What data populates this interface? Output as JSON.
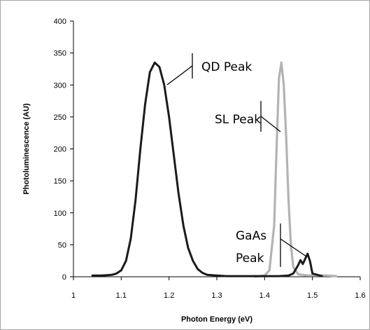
{
  "chart_data": {
    "type": "line",
    "xlabel": "Photon Energy (eV)",
    "ylabel": "Photoluminescence (AU)",
    "xlim": [
      1,
      1.6
    ],
    "ylim": [
      0,
      400
    ],
    "x_ticks": [
      "1",
      "1.1",
      "1.2",
      "1.3",
      "1.4",
      "1.5",
      "1.6"
    ],
    "y_ticks": [
      "0",
      "50",
      "100",
      "150",
      "200",
      "250",
      "300",
      "350",
      "400"
    ],
    "grid": false,
    "colors": {
      "qd_sample": "#1a1a1a",
      "sl_sample": "#b3b3b3",
      "axis": "#000000",
      "frame": "#a6a6a6"
    },
    "series": [
      {
        "color_key": "qd_sample",
        "x": [
          1.04,
          1.06,
          1.08,
          1.09,
          1.1,
          1.11,
          1.12,
          1.13,
          1.14,
          1.15,
          1.16,
          1.17,
          1.18,
          1.19,
          1.2,
          1.21,
          1.22,
          1.23,
          1.24,
          1.25,
          1.26,
          1.27,
          1.28,
          1.3,
          1.32,
          1.36,
          1.4,
          1.43,
          1.45,
          1.46,
          1.47,
          1.475,
          1.48,
          1.485,
          1.49,
          1.495,
          1.5,
          1.52
        ],
        "y": [
          2,
          2,
          3,
          5,
          10,
          25,
          60,
          120,
          200,
          270,
          320,
          335,
          328,
          300,
          250,
          190,
          130,
          80,
          45,
          25,
          12,
          6,
          3,
          2,
          1,
          1,
          1,
          1,
          2,
          5,
          18,
          26,
          20,
          28,
          36,
          24,
          5,
          1
        ]
      },
      {
        "color_key": "sl_sample",
        "x": [
          1.38,
          1.4,
          1.41,
          1.42,
          1.425,
          1.43,
          1.435,
          1.44,
          1.445,
          1.45,
          1.455,
          1.46,
          1.47,
          1.49,
          1.51,
          1.53,
          1.55
        ],
        "y": [
          0,
          2,
          10,
          80,
          200,
          310,
          335,
          300,
          220,
          120,
          50,
          15,
          4,
          2,
          2,
          2,
          1
        ]
      }
    ],
    "annotations": [
      {
        "label": "QD Peak",
        "x": 1.25,
        "y": 325
      },
      {
        "label": "SL Peak",
        "x": 1.42,
        "y": 255
      },
      {
        "label": "GaAs",
        "x": 1.4,
        "y": 60
      },
      {
        "label": "Peak",
        "x": 1.4,
        "y": 25
      }
    ]
  }
}
